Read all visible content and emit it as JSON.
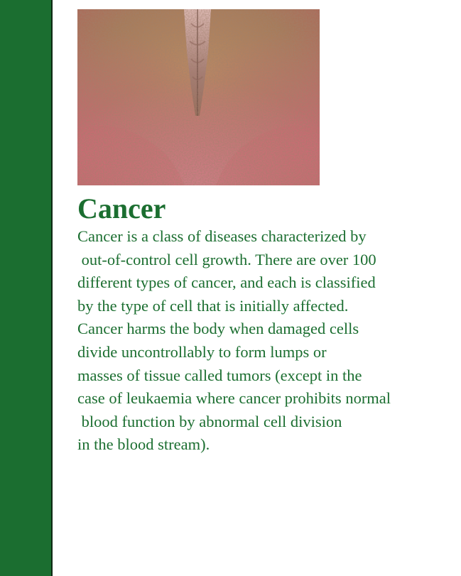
{
  "colors": {
    "sidebar": "#1b6e30",
    "text": "#1b6e30"
  },
  "article": {
    "title": "Cancer",
    "lines": [
      "Cancer is a class of diseases characterized by",
      " out-of-control cell growth. There are over 100",
      "different types of cancer, and each is classified",
      "by the type of cell that is initially affected.",
      "Cancer harms the body when damaged cells",
      "divide uncontrollably to form lumps or",
      "masses of tissue called tumors (except in the",
      "case of leukaemia where cancer prohibits normal",
      " blood function by abnormal cell division",
      "in the blood stream)."
    ]
  }
}
